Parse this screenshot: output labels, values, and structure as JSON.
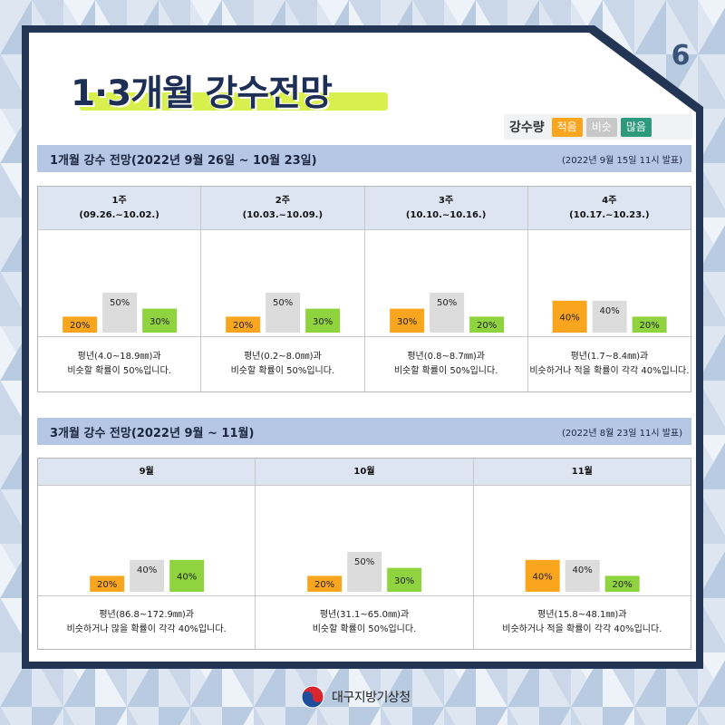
{
  "page_number": "6",
  "title": "1·3개월 강수전망",
  "legend": {
    "label": "강수량",
    "items": [
      {
        "label": "적음",
        "color": "#f9a51e"
      },
      {
        "label": "비슷",
        "color": "#c8c8c8"
      },
      {
        "label": "많음",
        "color": "#2e9a7d"
      }
    ]
  },
  "bar_colors": {
    "low": "#f9a51e",
    "normal": "#dcdcdc",
    "high": "#8fd33e"
  },
  "section1": {
    "title": "1개월 강수 전망(2022년 9월 26일 ~ 10월 23일)",
    "issued": "(2022년 9월 15일 11시 발표)",
    "columns": [
      {
        "head1": "1주",
        "head2": "(09.26.~10.02.)",
        "desc1": "평년(4.0~18.9㎜)과",
        "desc2": "비슷할 확률이 50%입니다.",
        "label_low": "20%",
        "label_normal": "50%",
        "label_high": "30%"
      },
      {
        "head1": "2주",
        "head2": "(10.03.~10.09.)",
        "desc1": "평년(0.2~8.0㎜)과",
        "desc2": "비슷할 확률이 50%입니다.",
        "label_low": "20%",
        "label_normal": "50%",
        "label_high": "30%"
      },
      {
        "head1": "3주",
        "head2": "(10.10.~10.16.)",
        "desc1": "평년(0.8~8.7㎜)과",
        "desc2": "비슷할 확률이 50%입니다.",
        "label_low": "30%",
        "label_normal": "50%",
        "label_high": "20%"
      },
      {
        "head1": "4주",
        "head2": "(10.17.~10.23.)",
        "desc1": "평년(1.7~8.4㎜)과",
        "desc2": "비슷하거나 적을 확률이 각각 40%입니다.",
        "label_low": "40%",
        "label_normal": "40%",
        "label_high": "20%"
      }
    ]
  },
  "section2": {
    "title": "3개월 강수 전망(2022년 9월 ~ 11월)",
    "issued": "(2022년 8월 23일 11시 발표)",
    "columns": [
      {
        "head1": "9월",
        "desc1": "평년(86.8~172.9㎜)과",
        "desc2": "비슷하거나 많을 확률이 각각 40%입니다.",
        "label_low": "20%",
        "label_normal": "40%",
        "label_high": "40%"
      },
      {
        "head1": "10월",
        "desc1": "평년(31.1~65.0㎜)과",
        "desc2": "비슷할 확률이 50%입니다.",
        "label_low": "20%",
        "label_normal": "50%",
        "label_high": "30%"
      },
      {
        "head1": "11월",
        "desc1": "평년(15.8~48.1㎜)과",
        "desc2": "비슷하거나 적을 확률이 각각 40%입니다.",
        "label_low": "40%",
        "label_normal": "40%",
        "label_high": "20%"
      }
    ]
  },
  "footer": {
    "org": "대구지방기상청"
  },
  "chart_data": [
    {
      "type": "bar",
      "categories": [
        "1주",
        "2주",
        "3주",
        "4주"
      ],
      "series": [
        {
          "name": "적음",
          "values": [
            20,
            20,
            30,
            40
          ]
        },
        {
          "name": "비슷",
          "values": [
            50,
            50,
            50,
            40
          ]
        },
        {
          "name": "많음",
          "values": [
            30,
            30,
            20,
            20
          ]
        }
      ],
      "ylim": [
        0,
        50
      ]
    },
    {
      "type": "bar",
      "categories": [
        "9월",
        "10월",
        "11월"
      ],
      "series": [
        {
          "name": "적음",
          "values": [
            20,
            20,
            40
          ]
        },
        {
          "name": "비슷",
          "values": [
            40,
            50,
            40
          ]
        },
        {
          "name": "많음",
          "values": [
            40,
            30,
            20
          ]
        }
      ],
      "ylim": [
        0,
        50
      ]
    }
  ]
}
